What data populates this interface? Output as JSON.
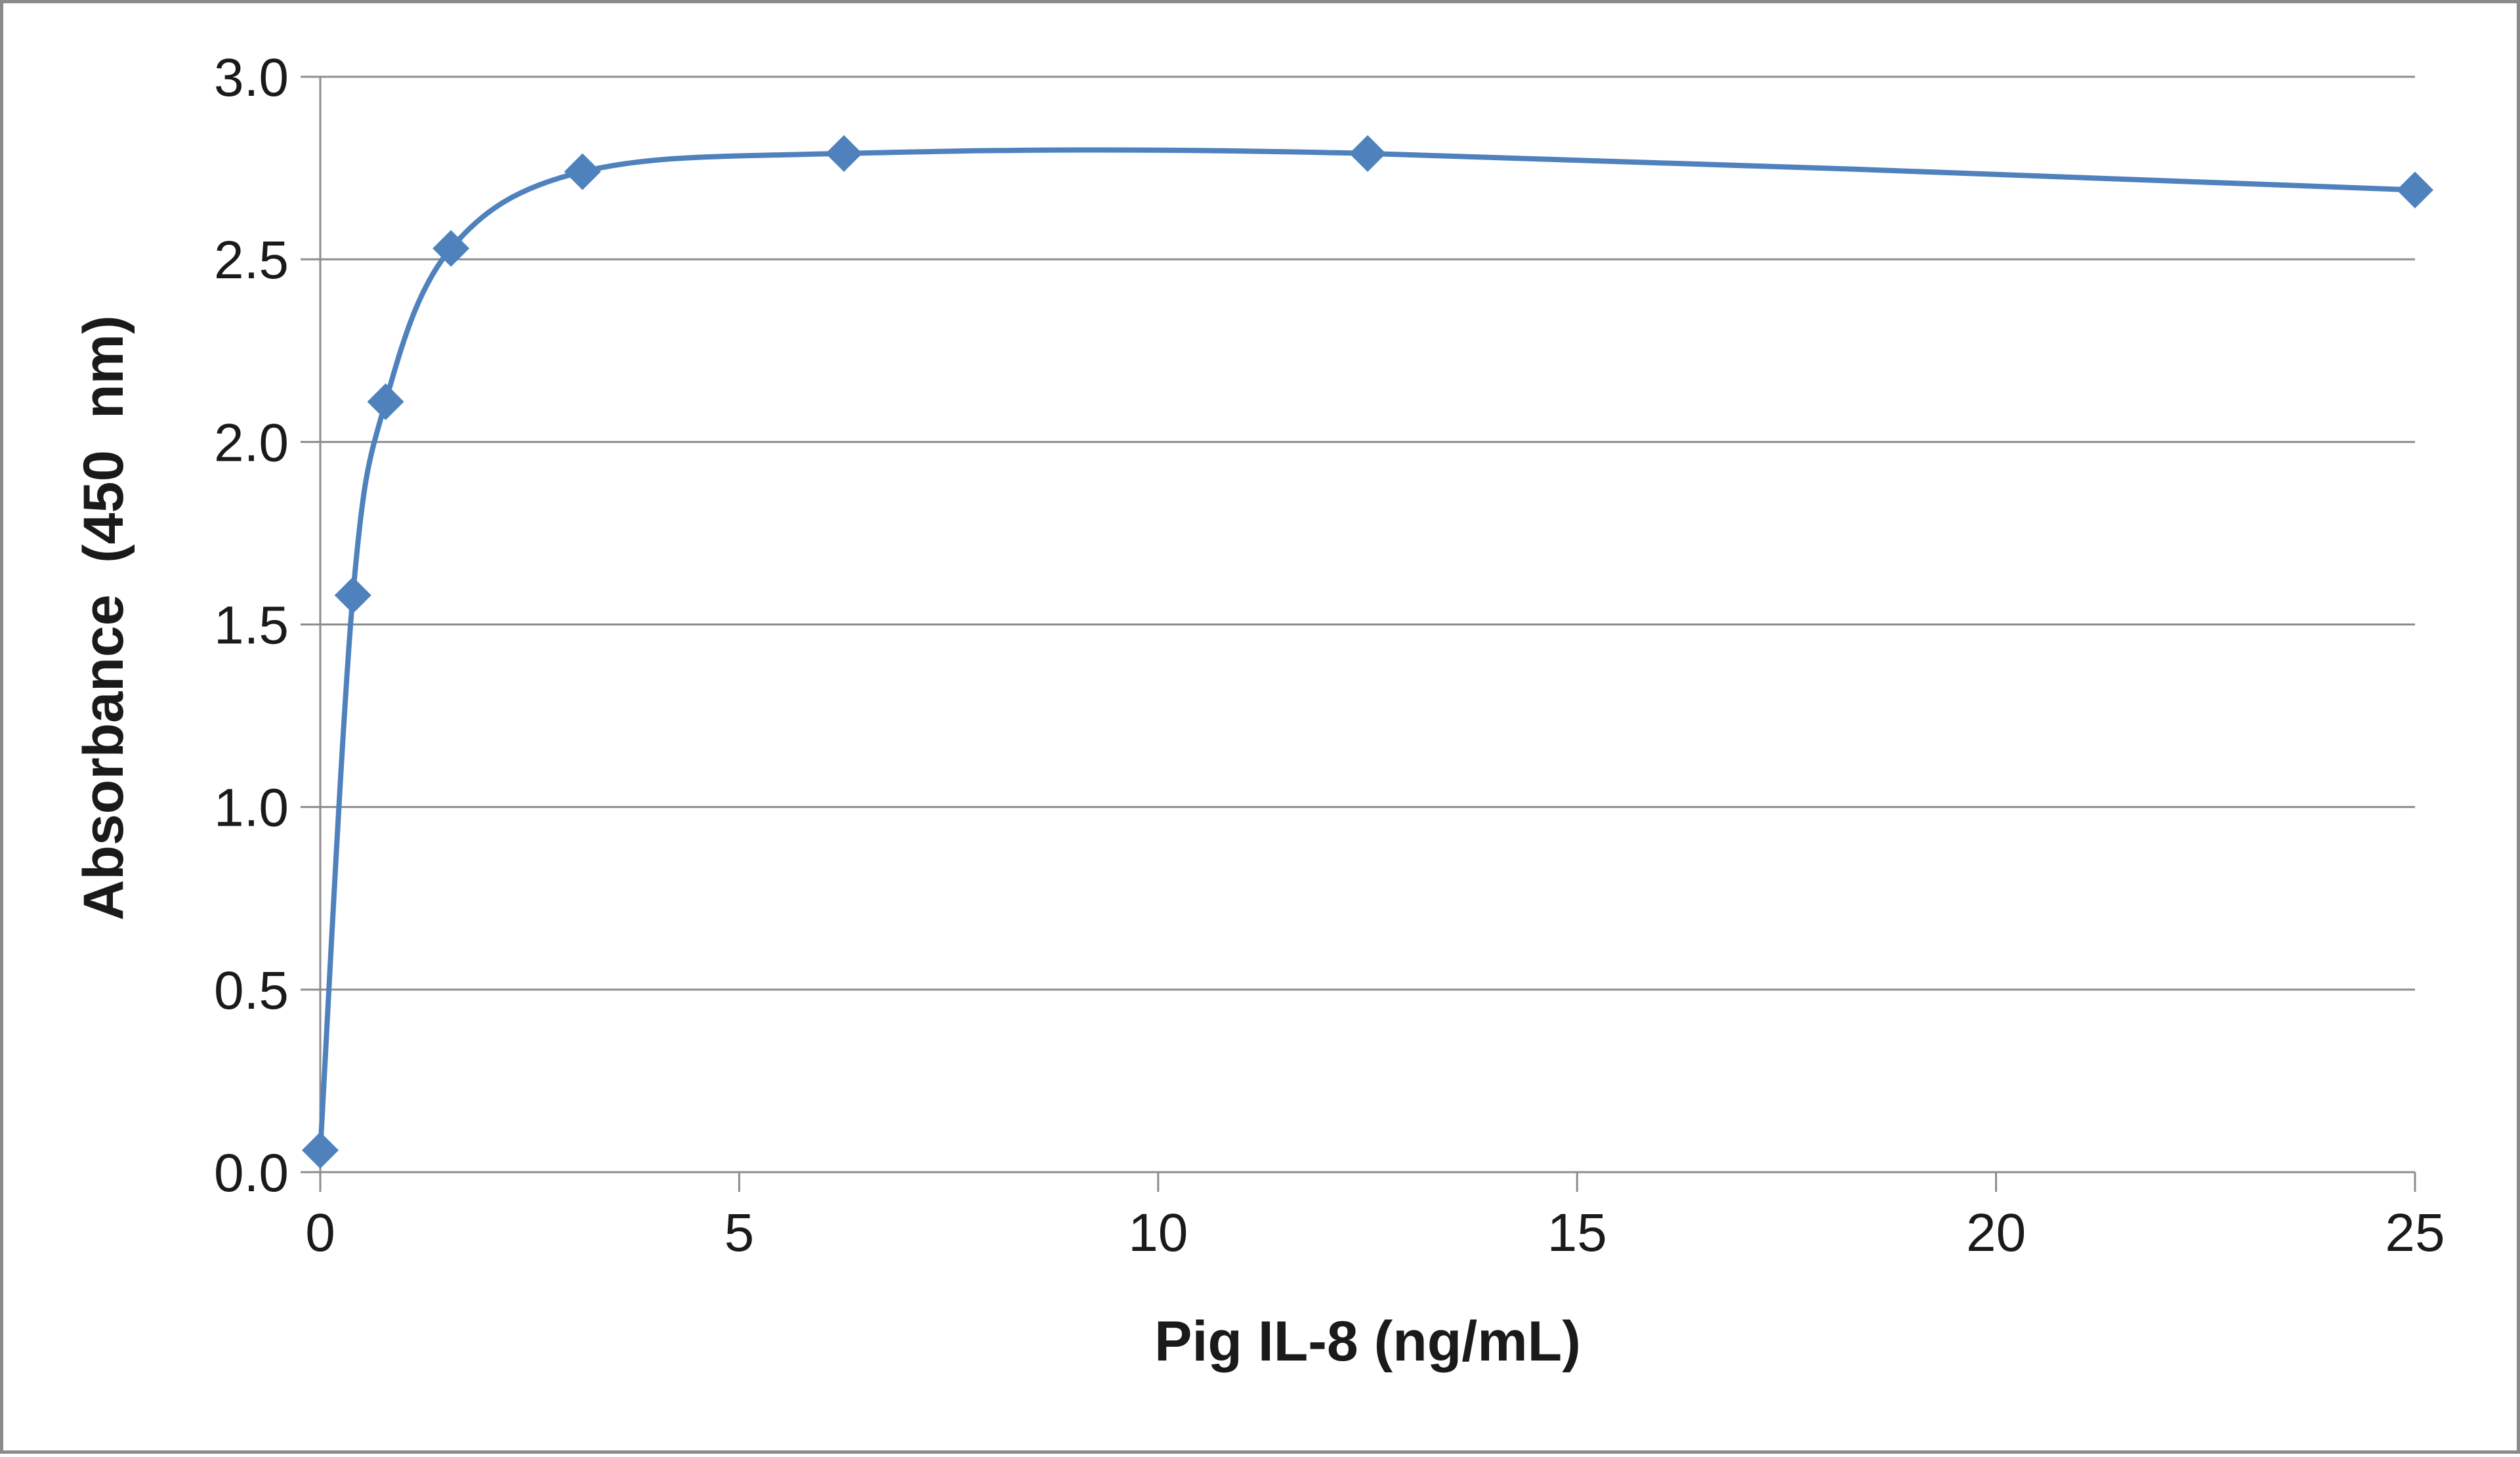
{
  "chart_data": {
    "type": "line",
    "title": "",
    "xlabel": "Pig IL-8 (ng/mL)",
    "ylabel": "Absorbance  (450  nm)",
    "xlim": [
      0,
      25
    ],
    "ylim": [
      0,
      3.0
    ],
    "x_ticks": [
      "0",
      "5",
      "10",
      "15",
      "20",
      "25"
    ],
    "y_ticks": [
      "0.0",
      "0.5",
      "1.0",
      "1.5",
      "2.0",
      "2.5",
      "3.0"
    ],
    "grid": "horizontal",
    "smoothed": true,
    "marker": "diamond",
    "color": "#4f81bd",
    "series": [
      {
        "x": [
          0,
          0.39,
          0.78,
          1.56,
          3.13,
          6.25,
          12.5,
          25
        ],
        "y": [
          0.06,
          1.58,
          2.11,
          2.53,
          2.74,
          2.79,
          2.79,
          2.69
        ]
      }
    ]
  }
}
